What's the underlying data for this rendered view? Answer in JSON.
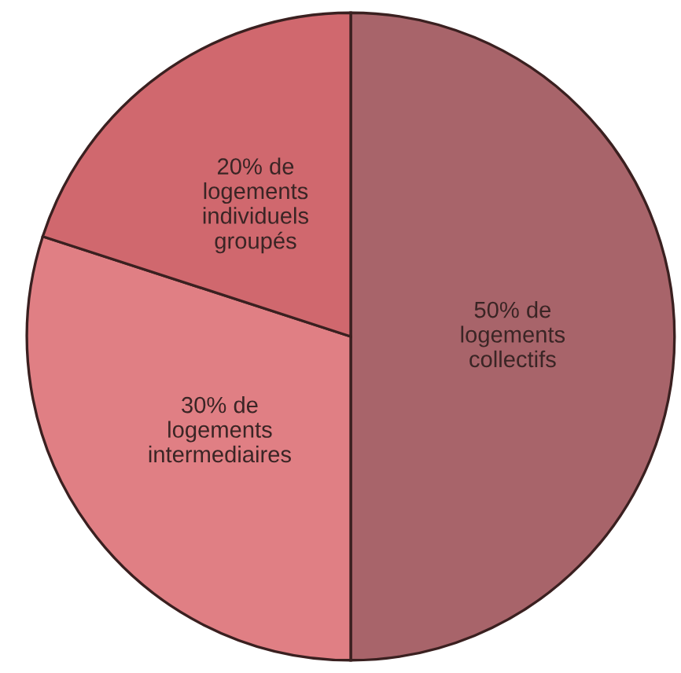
{
  "chart_data": {
    "type": "pie",
    "categories": [
      "50% de logements collectifs",
      "30% de logements intermediaires",
      "20% de logements individuels groupés"
    ],
    "values": [
      50,
      30,
      20
    ],
    "colors": [
      "#a8646a",
      "#e07f84",
      "#d0686e"
    ],
    "legend": false
  }
}
